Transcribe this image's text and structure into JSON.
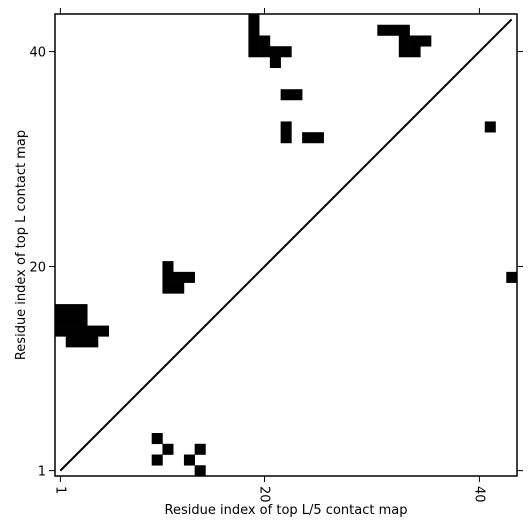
{
  "chart_data": {
    "type": "heatmap",
    "title": "",
    "xlabel": "Residue index of top L/5 contact map",
    "ylabel": "Residue index of top L contact map",
    "xlim": [
      0.5,
      43.5
    ],
    "ylim": [
      0.5,
      43.5
    ],
    "x_ticks": [
      1,
      20,
      40
    ],
    "y_ticks": [
      1,
      20,
      40
    ],
    "x_tick_labels": [
      "1",
      "20",
      "40"
    ],
    "y_tick_labels": [
      "1",
      "20",
      "40"
    ],
    "x_tick_rotation": 270,
    "grid": false,
    "diagonal_line": {
      "from": [
        1,
        1
      ],
      "to": [
        43,
        43
      ]
    },
    "cell_color": "#000000",
    "background_color": "#ffffff",
    "upper_triangle_contacts": [
      [
        19,
        43
      ],
      [
        19,
        42
      ],
      [
        19,
        41
      ],
      [
        19,
        40
      ],
      [
        20,
        41
      ],
      [
        20,
        40
      ],
      [
        21,
        40
      ],
      [
        22,
        40
      ],
      [
        21,
        39
      ],
      [
        31,
        42
      ],
      [
        32,
        42
      ],
      [
        33,
        42
      ],
      [
        33,
        41
      ],
      [
        34,
        41
      ],
      [
        35,
        41
      ],
      [
        33,
        40
      ],
      [
        34,
        40
      ],
      [
        22,
        36
      ],
      [
        23,
        36
      ],
      [
        22,
        33
      ],
      [
        22,
        32
      ],
      [
        24,
        32
      ],
      [
        25,
        32
      ],
      [
        41,
        33
      ]
    ],
    "lower_triangle_contacts": [
      [
        1,
        16
      ],
      [
        2,
        16
      ],
      [
        3,
        16
      ],
      [
        1,
        15
      ],
      [
        2,
        15
      ],
      [
        3,
        15
      ],
      [
        1,
        14
      ],
      [
        2,
        14
      ],
      [
        3,
        14
      ],
      [
        4,
        14
      ],
      [
        5,
        14
      ],
      [
        2,
        13
      ],
      [
        3,
        13
      ],
      [
        4,
        13
      ],
      [
        11,
        20
      ],
      [
        11,
        19
      ],
      [
        12,
        19
      ],
      [
        13,
        19
      ],
      [
        11,
        18
      ],
      [
        12,
        18
      ],
      [
        10,
        4
      ],
      [
        11,
        3
      ],
      [
        14,
        3
      ],
      [
        10,
        2
      ],
      [
        13,
        2
      ],
      [
        14,
        1
      ],
      [
        43,
        19
      ]
    ]
  }
}
